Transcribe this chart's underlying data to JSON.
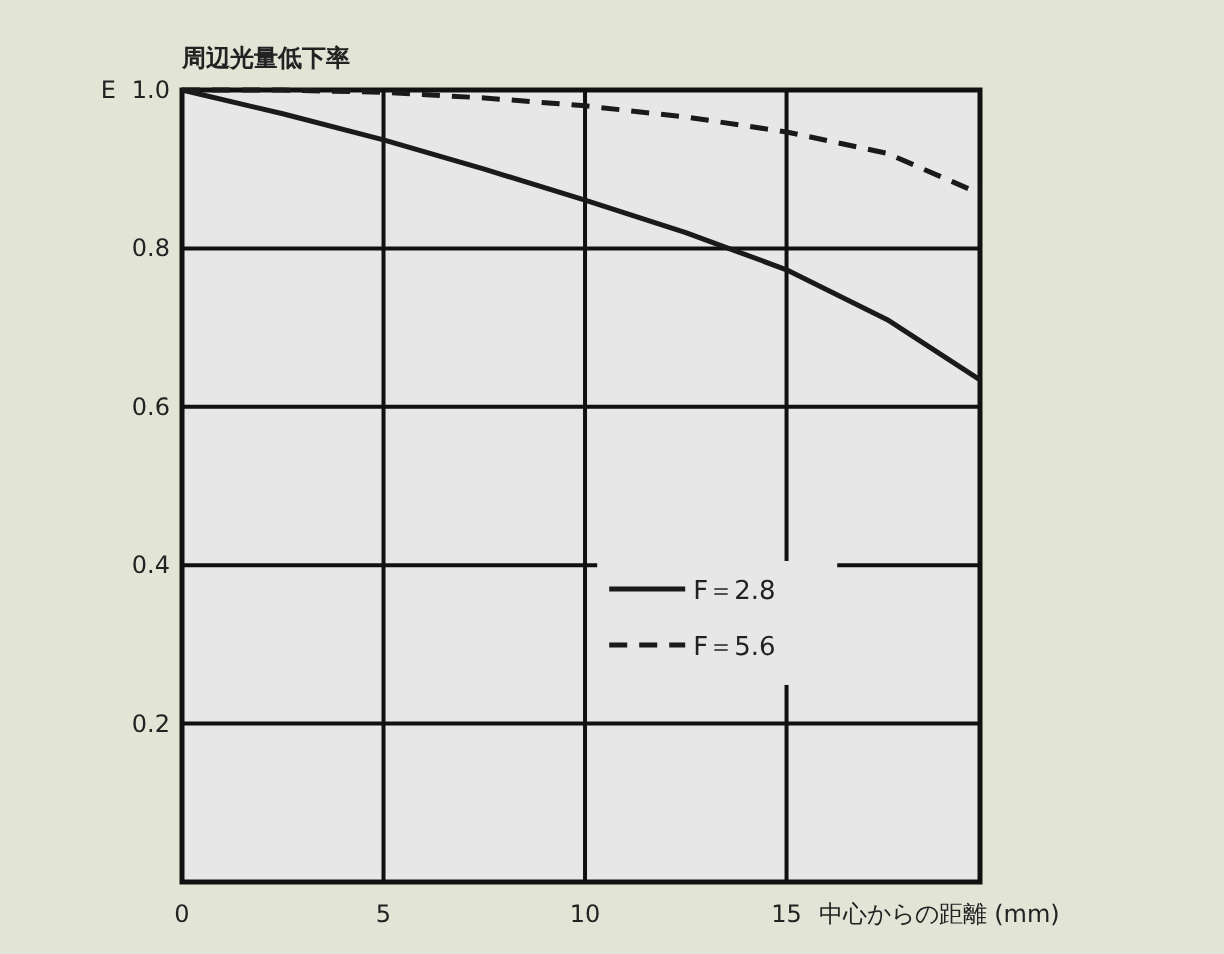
{
  "chart_data": {
    "type": "line",
    "title": "周辺光量低下率",
    "xlabel": "中心からの距離 (mm)",
    "ylabel": "E",
    "x": [
      0,
      2.5,
      5,
      7.5,
      10,
      12.5,
      15,
      17.5,
      19.8
    ],
    "series": [
      {
        "name": "F＝2.8",
        "color": "#1a1a1a",
        "line_style": "solid",
        "values": [
          1.0,
          0.97,
          0.937,
          0.9,
          0.861,
          0.82,
          0.773,
          0.71,
          0.634
        ]
      },
      {
        "name": "F＝5.6",
        "color": "#1a1a1a",
        "line_style": "dashed",
        "values": [
          1.0,
          1.0,
          0.997,
          0.99,
          0.98,
          0.966,
          0.947,
          0.92,
          0.869
        ]
      }
    ],
    "xlim": [
      0,
      19.8
    ],
    "xticks": [
      0,
      5,
      10,
      15
    ],
    "ylim": [
      0,
      1
    ],
    "yticks": [
      {
        "value": 0,
        "label": null
      },
      0.2,
      0.4,
      0.6,
      0.8,
      {
        "value": 1,
        "label": "1.0"
      }
    ],
    "grid": true,
    "legend": "bottom center",
    "marker": "none"
  }
}
